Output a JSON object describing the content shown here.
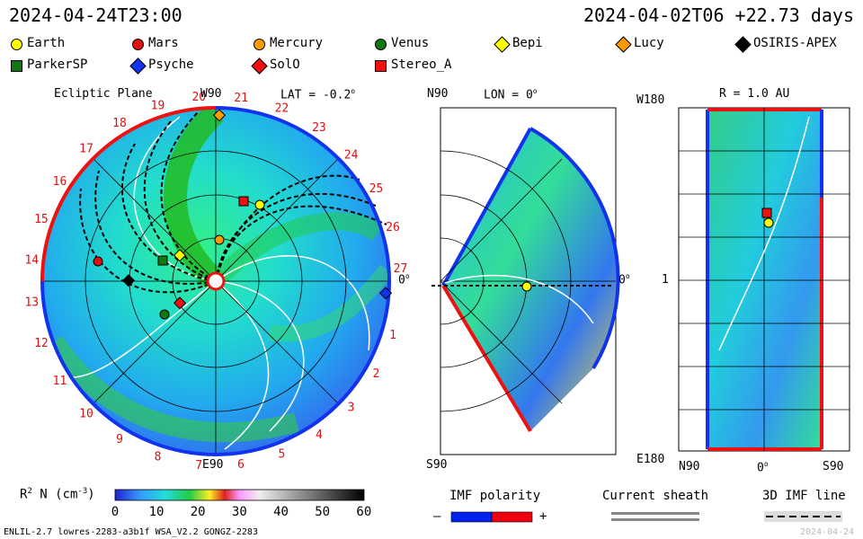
{
  "header": {
    "timestamp_left": "2024-04-24T23:00",
    "timestamp_right": "2024-04-02T06 +22.73 days"
  },
  "legend": [
    {
      "label": "Earth",
      "color": "#ffff00",
      "shape": "circle"
    },
    {
      "label": "Mars",
      "color": "#dd1111",
      "shape": "circle"
    },
    {
      "label": "Mercury",
      "color": "#ff9900",
      "shape": "circle"
    },
    {
      "label": "Venus",
      "color": "#117711",
      "shape": "circle"
    },
    {
      "label": "Bepi",
      "color": "#ffff00",
      "shape": "diamond"
    },
    {
      "label": "Lucy",
      "color": "#ff9900",
      "shape": "diamond"
    },
    {
      "label": "OSIRIS-APEX",
      "color": "#000000",
      "shape": "diamond"
    },
    {
      "label": "ParkerSP",
      "color": "#117711",
      "shape": "square"
    },
    {
      "label": "Psyche",
      "color": "#1133ee",
      "shape": "diamond"
    },
    {
      "label": "SolO",
      "color": "#ee1111",
      "shape": "diamond"
    },
    {
      "label": "Stereo_A",
      "color": "#ee1111",
      "shape": "square"
    }
  ],
  "panels": {
    "ecliptic": {
      "title": "Ecliptic Plane",
      "w_label": "W90",
      "e_label": "E90",
      "lat_label": "LAT = -0.2",
      "zero_label": "0",
      "rotation_numbers": [
        "1",
        "2",
        "3",
        "4",
        "5",
        "6",
        "7",
        "8",
        "9",
        "10",
        "11",
        "12",
        "13",
        "14",
        "15",
        "16",
        "17",
        "18",
        "19",
        "20",
        "21",
        "22",
        "23",
        "24",
        "25",
        "26",
        "27"
      ]
    },
    "meridional": {
      "n_label": "N90",
      "s_label": "S90",
      "lon_label": "LON = 0",
      "zero_label": "0"
    },
    "latlon": {
      "r_label": "R = 1.0 AU",
      "top_label": "W180",
      "bottom_label": "E180",
      "mid_label": "1",
      "x_labels": [
        "N90",
        "0",
        "S90"
      ]
    }
  },
  "colorbar": {
    "title_prefix": "R",
    "title_sup": "2",
    "title_mid": " N (cm",
    "title_sup2": "-3",
    "title_suffix": ")",
    "ticks": [
      "0",
      "10",
      "20",
      "30",
      "40",
      "50",
      "60"
    ]
  },
  "imf": {
    "title": "IMF polarity",
    "minus": "–",
    "plus": "+",
    "neg_color": "#0022ee",
    "pos_color": "#ee0011"
  },
  "sheath": {
    "title": "Current sheath"
  },
  "imf3d": {
    "title": "3D IMF line"
  },
  "footer": {
    "left": "ENLIL-2.7 lowres-2283-a3b1f WSA_V2.2 GONGZ-2283",
    "right": "2024-04-24"
  }
}
